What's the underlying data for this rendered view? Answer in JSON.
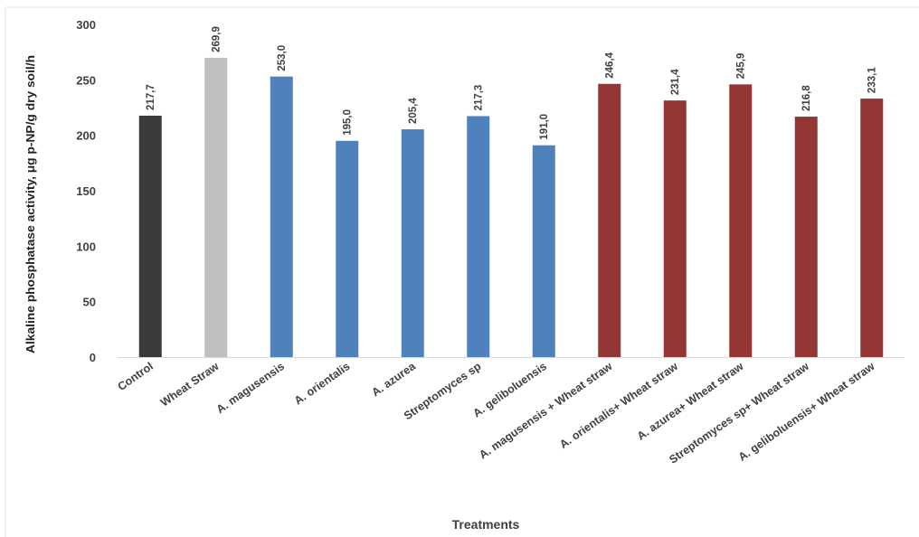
{
  "chart_data": {
    "type": "bar",
    "title": "",
    "xlabel": "Treatments",
    "ylabel": "Alkaline phosphatase activity, μg p-NP/g dry soil/h",
    "ylim": [
      0,
      300
    ],
    "yticks": [
      0,
      50,
      100,
      150,
      200,
      250,
      300
    ],
    "grid": false,
    "categories": [
      "Control",
      "Wheat Straw",
      "A. magusensis",
      "A. orientalis",
      "A. azurea",
      "Streptomyces sp",
      "A. geliboluensis",
      "A. magusensis + Wheat straw",
      "A. orientalis+ Wheat straw",
      "A. azurea+ Wheat straw",
      "Streptomyces sp+ Wheat straw",
      "A. geliboluensis+ Wheat straw"
    ],
    "values": [
      217.7,
      269.9,
      253.0,
      195.0,
      205.4,
      217.3,
      191.0,
      246.4,
      231.4,
      245.9,
      216.8,
      233.1
    ],
    "value_labels": [
      "217,7",
      "269,9",
      "253,0",
      "195,0",
      "205,4",
      "217,3",
      "191,0",
      "246,4",
      "231,4",
      "245,9",
      "216,8",
      "233,1"
    ],
    "colors": [
      "#3b3b3b",
      "#bfbfbf",
      "#4f81bd",
      "#4f81bd",
      "#4f81bd",
      "#4f81bd",
      "#4f81bd",
      "#943634",
      "#943634",
      "#943634",
      "#943634",
      "#943634"
    ]
  }
}
